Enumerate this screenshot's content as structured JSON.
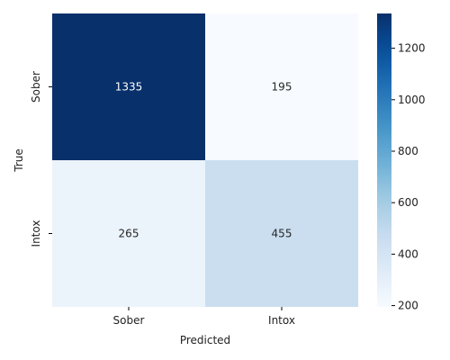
{
  "chart_data": {
    "type": "heatmap",
    "title": "",
    "xlabel": "Predicted",
    "ylabel": "True",
    "x_categories": [
      "Sober",
      "Intox"
    ],
    "y_categories": [
      "Sober",
      "Intox"
    ],
    "values": [
      [
        1335,
        195
      ],
      [
        265,
        455
      ]
    ],
    "colorbar": {
      "colormap": "Blues",
      "range": [
        195,
        1335
      ],
      "ticks": [
        200,
        400,
        600,
        800,
        1000,
        1200
      ]
    },
    "colors": {
      "low": "#f7fbff",
      "high": "#08306b",
      "text_on_dark": "#ffffff",
      "text_on_light": "#262626"
    }
  }
}
